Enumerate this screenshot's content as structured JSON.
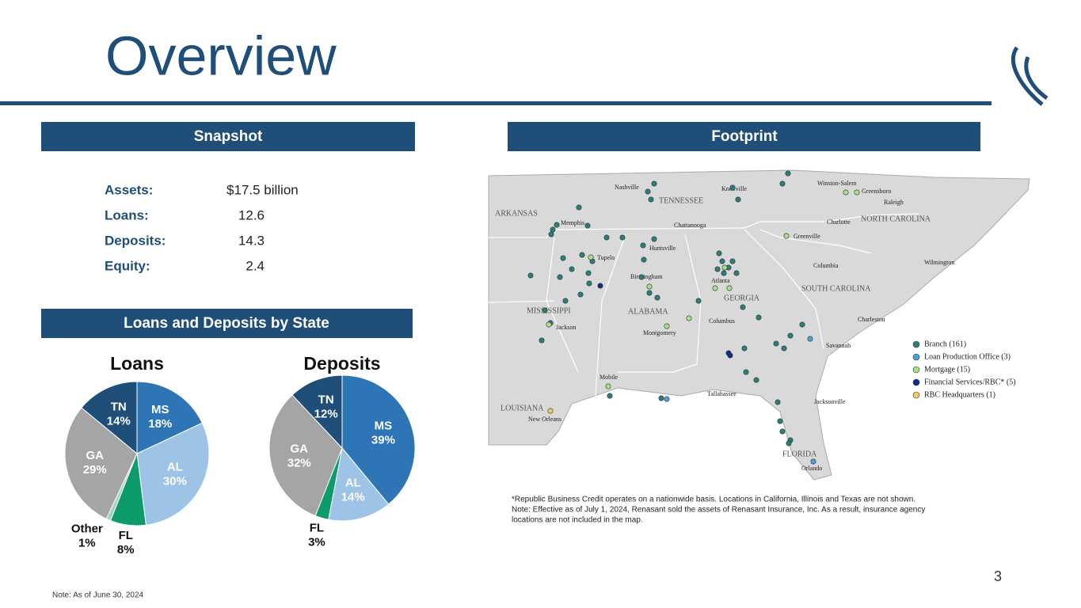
{
  "header": {
    "title": "Overview",
    "page_number": "3"
  },
  "snapshot": {
    "title": "Snapshot",
    "items": [
      {
        "label": "Assets:",
        "value": "$17.5 billion"
      },
      {
        "label": "Loans:",
        "value": "12.6"
      },
      {
        "label": "Deposits:",
        "value": "14.3"
      },
      {
        "label": "Equity:",
        "value": "2.4"
      }
    ]
  },
  "section_title": "Loans and Deposits by State",
  "chart_data": [
    {
      "type": "pie",
      "title": "Loans",
      "categories": [
        "MS",
        "AL",
        "FL",
        "Other",
        "GA",
        "TN"
      ],
      "values": [
        18,
        30,
        8,
        1,
        29,
        14
      ],
      "value_labels": [
        "18%",
        "30%",
        "8%",
        "1%",
        "29%",
        "14%"
      ],
      "colors": [
        "#2e75b6",
        "#9dc3e6",
        "#0d9b6c",
        "#a8cfc0",
        "#a5a5a5",
        "#1f4e79"
      ]
    },
    {
      "type": "pie",
      "title": "Deposits",
      "categories": [
        "MS",
        "AL",
        "FL",
        "GA",
        "TN"
      ],
      "values": [
        39,
        14,
        3,
        32,
        12
      ],
      "value_labels": [
        "39%",
        "14%",
        "3%",
        "32%",
        "12%"
      ],
      "colors": [
        "#2e75b6",
        "#9dc3e6",
        "#0d9b6c",
        "#a5a5a5",
        "#1f4e79"
      ]
    }
  ],
  "footprint": {
    "title": "Footprint",
    "map_labels": [
      "ARKANSAS",
      "TENNESSEE",
      "NORTH CAROLINA",
      "MISSISSIPPI",
      "ALABAMA",
      "GEORGIA",
      "SOUTH CAROLINA",
      "LOUISIANA",
      "FLORIDA",
      "Nashville",
      "Knoxville",
      "Winston-Salem",
      "Greensboro",
      "Raleigh",
      "Memphis",
      "Chattanooga",
      "Charlotte",
      "Tupelo",
      "Huntsville",
      "Greenville",
      "Wilmington",
      "Birmingham",
      "Atlanta",
      "Columbia",
      "Jackson",
      "Montgomery",
      "Columbus",
      "Charleston",
      "Savannah",
      "Mobile",
      "Tallahassee",
      "Jacksonville",
      "New Orleans",
      "Orlando"
    ],
    "legend": [
      {
        "name": "Branch (161)",
        "color": "#2a7f7a"
      },
      {
        "name": "Loan Production Office (3)",
        "color": "#4aa3d8"
      },
      {
        "name": "Mortgage (15)",
        "color": "#a6e08a"
      },
      {
        "name": "Financial Services/RBC* (5)",
        "color": "#0b2d8c"
      },
      {
        "name": "RBC Headquarters (1)",
        "color": "#f4c96b"
      }
    ],
    "notes": [
      "*Republic Business Credit operates on a nationwide basis. Locations in California, Illinois and Texas are not shown.",
      "Note: Effective as of July 1, 2024, Renasant sold the assets of Renasant Insurance, Inc.  As a result, insurance agency",
      "locations are not included in the map."
    ]
  },
  "footer_note": "Note: As of June 30, 2024"
}
